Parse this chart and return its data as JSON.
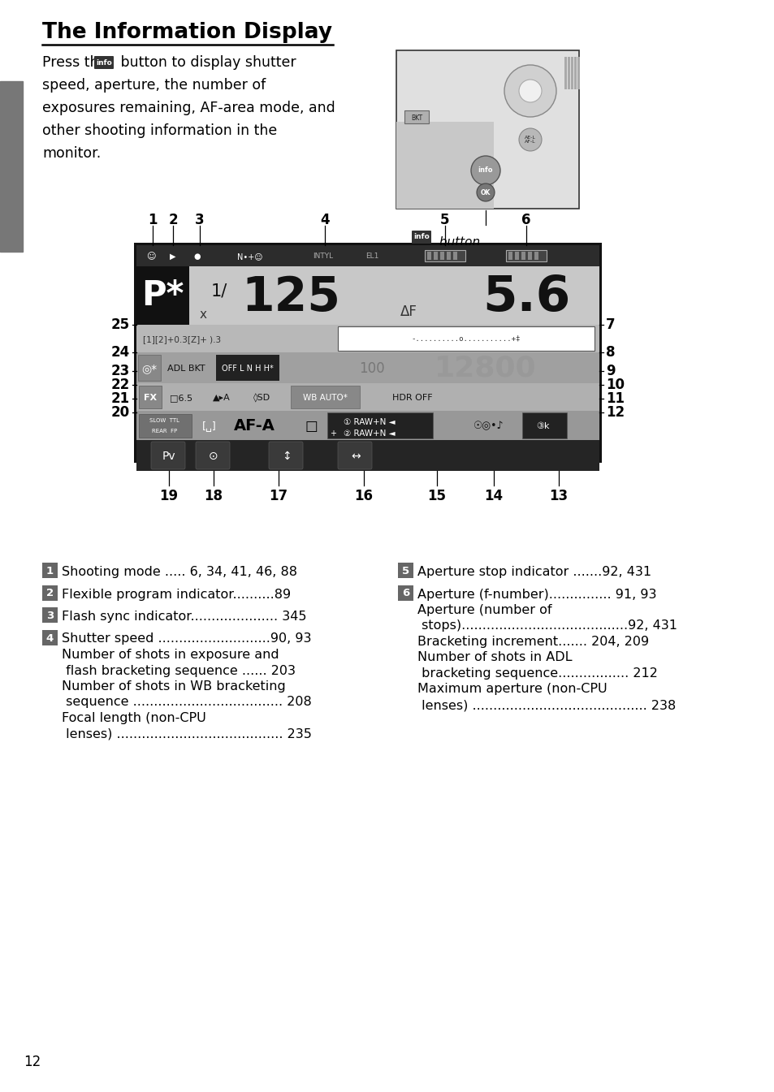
{
  "title": "The Information Display",
  "page_number": "12",
  "bg_color": "#ffffff",
  "sidebar_color": "#777777",
  "display_bg": "#1c1c1c",
  "top_strip_color": "#2a2a2a",
  "main_row_color": "#c8c8c8",
  "p_box_color": "#111111",
  "ev_row_color": "#c0c0c0",
  "iso_row_color": "#a8a8a8",
  "wb_row_color": "#b8b8b8",
  "af_row_color": "#989898",
  "bot_row_color": "#888888",
  "vbot_row_color": "#282828",
  "label_color": "#555555",
  "col1_entries": [
    {
      "num": "1",
      "lines": [
        "Shooting mode ..... 6, 34, 41, 46, 88"
      ]
    },
    {
      "num": "2",
      "lines": [
        "Flexible program indicator..........89"
      ]
    },
    {
      "num": "3",
      "lines": [
        "Flash sync indicator..................... 345"
      ]
    },
    {
      "num": "4",
      "lines": [
        "Shutter speed ...........................90, 93",
        "Number of shots in exposure and",
        " flash bracketing sequence ...... 203",
        "Number of shots in WB bracketing",
        " sequence .................................... 208",
        "Focal length (non-CPU",
        " lenses) ........................................ 235"
      ]
    }
  ],
  "col2_entries": [
    {
      "num": "5",
      "lines": [
        "Aperture stop indicator .......92, 431"
      ]
    },
    {
      "num": "6",
      "lines": [
        "Aperture (f-number)............... 91, 93",
        "Aperture (number of",
        " stops)........................................92, 431",
        "Bracketing increment....... 204, 209",
        "Number of shots in ADL",
        " bracketing sequence................. 212",
        "Maximum aperture (non-CPU",
        " lenses) .......................................... 238"
      ]
    }
  ],
  "top_nums": [
    "1",
    "2",
    "3",
    "4",
    "5",
    "6"
  ],
  "left_nums": [
    "25",
    "24",
    "23",
    "22",
    "21",
    "20"
  ],
  "right_nums": [
    "7",
    "8",
    "9",
    "10",
    "11",
    "12"
  ],
  "bot_nums": [
    "19",
    "18",
    "17",
    "16",
    "15",
    "14",
    "13"
  ]
}
